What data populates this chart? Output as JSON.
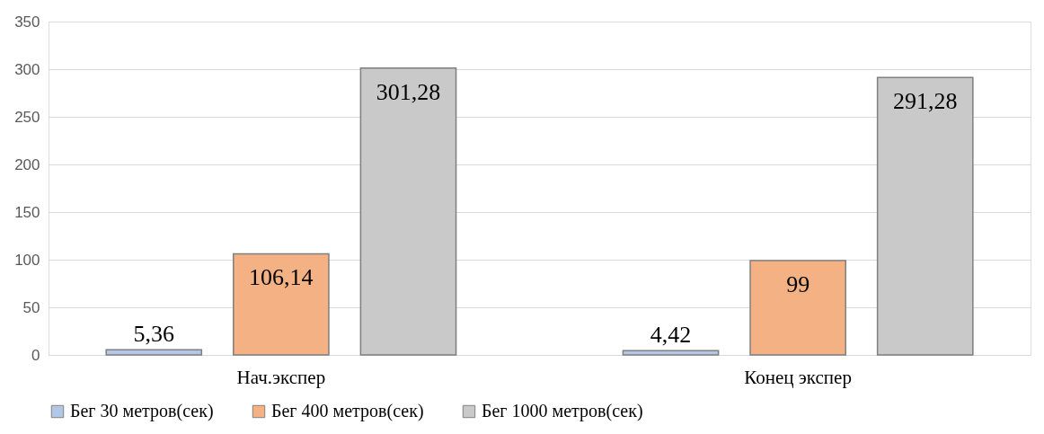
{
  "chart_data": {
    "type": "bar",
    "categories": [
      "Нач.экспер",
      "Конец экспер"
    ],
    "series": [
      {
        "name": "Бег 30 метров(сек)",
        "color": "#b4c7e7",
        "values": [
          5.36,
          4.42
        ],
        "value_labels": [
          "5,36",
          "4,42"
        ]
      },
      {
        "name": "Бег 400 метров(сек)",
        "color": "#f4b183",
        "values": [
          106.14,
          99
        ],
        "value_labels": [
          "106,14",
          "99"
        ]
      },
      {
        "name": "Бег 1000 метров(сек)",
        "color": "#c9c9c9",
        "values": [
          301.28,
          291.28
        ],
        "value_labels": [
          "301,28",
          "291,28"
        ]
      }
    ],
    "ylim": [
      0,
      350
    ],
    "yticks": [
      0,
      50,
      100,
      150,
      200,
      250,
      300,
      350
    ],
    "grid": "y",
    "legend": "bottom"
  }
}
